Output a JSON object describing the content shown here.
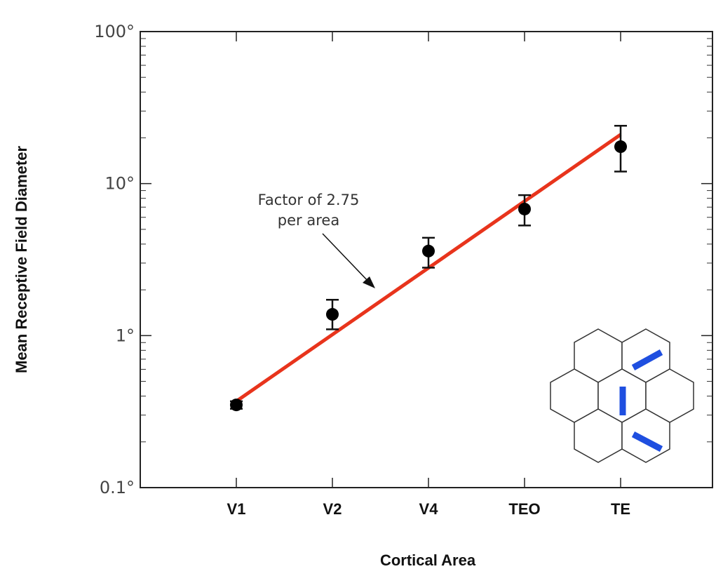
{
  "chart_data": {
    "type": "scatter",
    "title": "",
    "xlabel": "Cortical Area",
    "ylabel": "Mean Receptive Field Diameter",
    "y_scale": "log",
    "ylim": [
      0.1,
      100
    ],
    "y_ticks": [
      {
        "value": 0.1,
        "label": "0.1°"
      },
      {
        "value": 1,
        "label": "1°"
      },
      {
        "value": 10,
        "label": "10°"
      },
      {
        "value": 100,
        "label": "100°"
      }
    ],
    "categories": [
      "V1",
      "V2",
      "V4",
      "TEO",
      "TE"
    ],
    "series": [
      {
        "values": [
          0.35,
          1.38,
          3.6,
          6.8,
          17.5
        ],
        "error_low": [
          0.33,
          1.1,
          2.8,
          5.3,
          12
        ],
        "error_high": [
          0.37,
          1.72,
          4.4,
          8.4,
          24
        ]
      }
    ],
    "fit_line": {
      "start": 0.37,
      "end": 21,
      "color": "#e8341c"
    },
    "annotations": [
      {
        "line1": "Factor of 2.75",
        "line2": "per area"
      }
    ],
    "inset": {
      "description": "hexagonal-grid",
      "bar_color": "#1f4fe0"
    }
  }
}
